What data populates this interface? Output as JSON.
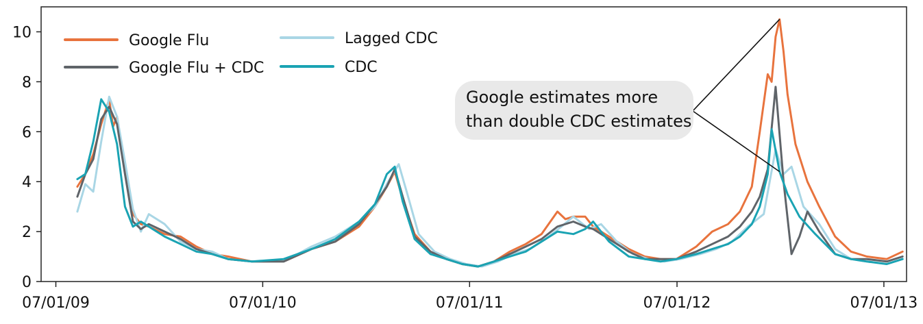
{
  "chart_data": {
    "type": "line",
    "title": "",
    "xlabel": "",
    "ylabel": "",
    "xlim": [
      "2009-06-05",
      "2013-08-10"
    ],
    "ylim": [
      0,
      11
    ],
    "yticks": [
      0,
      2,
      4,
      6,
      8,
      10
    ],
    "xticks": [
      "2009-07-01",
      "2010-07-01",
      "2011-07-01",
      "2012-07-01",
      "2013-07-01"
    ],
    "xtick_labels": [
      "07/01/09",
      "07/01/10",
      "07/01/11",
      "07/01/12",
      "07/01/13"
    ],
    "grid": false,
    "legend_position": "top-left",
    "series": [
      {
        "name": "Google Flu",
        "color": "#e8733d",
        "points": [
          [
            "2009-08-08",
            3.8
          ],
          [
            "2009-08-22",
            4.3
          ],
          [
            "2009-09-05",
            5.1
          ],
          [
            "2009-09-19",
            6.3
          ],
          [
            "2009-10-03",
            7.3
          ],
          [
            "2009-10-10",
            6.2
          ],
          [
            "2009-10-17",
            6.6
          ],
          [
            "2009-10-31",
            4.6
          ],
          [
            "2009-11-14",
            2.7
          ],
          [
            "2009-11-28",
            2.3
          ],
          [
            "2009-12-12",
            2.2
          ],
          [
            "2010-01-09",
            1.9
          ],
          [
            "2010-02-06",
            1.8
          ],
          [
            "2010-03-06",
            1.4
          ],
          [
            "2010-04-03",
            1.1
          ],
          [
            "2010-05-01",
            1.0
          ],
          [
            "2010-06-12",
            0.8
          ],
          [
            "2010-08-07",
            0.8
          ],
          [
            "2010-09-25",
            1.3
          ],
          [
            "2010-11-06",
            1.6
          ],
          [
            "2010-12-18",
            2.2
          ],
          [
            "2011-01-15",
            3.0
          ],
          [
            "2011-02-05",
            3.8
          ],
          [
            "2011-02-19",
            4.4
          ],
          [
            "2011-03-05",
            3.3
          ],
          [
            "2011-03-26",
            1.9
          ],
          [
            "2011-04-23",
            1.2
          ],
          [
            "2011-05-21",
            0.9
          ],
          [
            "2011-06-18",
            0.7
          ],
          [
            "2011-07-16",
            0.6
          ],
          [
            "2011-08-13",
            0.8
          ],
          [
            "2011-09-10",
            1.2
          ],
          [
            "2011-10-08",
            1.5
          ],
          [
            "2011-11-05",
            1.9
          ],
          [
            "2011-12-03",
            2.8
          ],
          [
            "2011-12-17",
            2.5
          ],
          [
            "2011-12-31",
            2.6
          ],
          [
            "2012-01-21",
            2.6
          ],
          [
            "2012-02-04",
            2.2
          ],
          [
            "2012-03-03",
            1.8
          ],
          [
            "2012-04-07",
            1.3
          ],
          [
            "2012-05-05",
            1.0
          ],
          [
            "2012-06-02",
            0.9
          ],
          [
            "2012-06-30",
            0.9
          ],
          [
            "2012-08-04",
            1.4
          ],
          [
            "2012-09-01",
            2.0
          ],
          [
            "2012-09-29",
            2.3
          ],
          [
            "2012-10-20",
            2.8
          ],
          [
            "2012-11-10",
            3.8
          ],
          [
            "2012-11-24",
            6.0
          ],
          [
            "2012-12-08",
            8.3
          ],
          [
            "2012-12-15",
            8.0
          ],
          [
            "2012-12-22",
            9.8
          ],
          [
            "2012-12-29",
            10.5
          ],
          [
            "2013-01-05",
            9.2
          ],
          [
            "2013-01-12",
            7.5
          ],
          [
            "2013-01-26",
            5.5
          ],
          [
            "2013-02-16",
            4.0
          ],
          [
            "2013-03-09",
            3.0
          ],
          [
            "2013-04-06",
            1.8
          ],
          [
            "2013-05-04",
            1.2
          ],
          [
            "2013-06-01",
            1.0
          ],
          [
            "2013-07-06",
            0.9
          ],
          [
            "2013-08-03",
            1.2
          ]
        ]
      },
      {
        "name": "Google Flu + CDC",
        "color": "#5f6469",
        "points": [
          [
            "2009-08-08",
            3.4
          ],
          [
            "2009-08-22",
            4.3
          ],
          [
            "2009-09-05",
            4.9
          ],
          [
            "2009-09-19",
            6.5
          ],
          [
            "2009-10-03",
            7.0
          ],
          [
            "2009-10-17",
            6.3
          ],
          [
            "2009-10-31",
            4.3
          ],
          [
            "2009-11-14",
            2.4
          ],
          [
            "2009-11-28",
            2.1
          ],
          [
            "2009-12-12",
            2.3
          ],
          [
            "2010-01-09",
            2.0
          ],
          [
            "2010-02-06",
            1.7
          ],
          [
            "2010-03-06",
            1.3
          ],
          [
            "2010-04-03",
            1.1
          ],
          [
            "2010-05-01",
            0.9
          ],
          [
            "2010-06-12",
            0.8
          ],
          [
            "2010-08-07",
            0.8
          ],
          [
            "2010-09-25",
            1.3
          ],
          [
            "2010-11-06",
            1.6
          ],
          [
            "2010-12-18",
            2.3
          ],
          [
            "2011-01-15",
            3.1
          ],
          [
            "2011-02-05",
            3.8
          ],
          [
            "2011-02-19",
            4.5
          ],
          [
            "2011-03-05",
            3.4
          ],
          [
            "2011-03-26",
            1.8
          ],
          [
            "2011-04-23",
            1.2
          ],
          [
            "2011-05-21",
            0.9
          ],
          [
            "2011-06-18",
            0.7
          ],
          [
            "2011-07-16",
            0.6
          ],
          [
            "2011-08-13",
            0.8
          ],
          [
            "2011-09-10",
            1.1
          ],
          [
            "2011-10-08",
            1.4
          ],
          [
            "2011-11-05",
            1.7
          ],
          [
            "2011-12-03",
            2.2
          ],
          [
            "2011-12-31",
            2.4
          ],
          [
            "2012-01-21",
            2.2
          ],
          [
            "2012-02-04",
            2.1
          ],
          [
            "2012-03-03",
            1.7
          ],
          [
            "2012-04-07",
            1.2
          ],
          [
            "2012-05-05",
            0.9
          ],
          [
            "2012-06-02",
            0.9
          ],
          [
            "2012-06-30",
            0.9
          ],
          [
            "2012-08-04",
            1.2
          ],
          [
            "2012-09-01",
            1.5
          ],
          [
            "2012-09-29",
            1.8
          ],
          [
            "2012-10-20",
            2.2
          ],
          [
            "2012-11-10",
            2.8
          ],
          [
            "2012-11-24",
            3.4
          ],
          [
            "2012-12-08",
            4.5
          ],
          [
            "2012-12-22",
            7.8
          ],
          [
            "2013-01-05",
            4.0
          ],
          [
            "2013-01-19",
            1.1
          ],
          [
            "2013-02-02",
            1.8
          ],
          [
            "2013-02-16",
            2.8
          ],
          [
            "2013-03-09",
            2.0
          ],
          [
            "2013-04-06",
            1.1
          ],
          [
            "2013-05-04",
            0.9
          ],
          [
            "2013-06-01",
            0.9
          ],
          [
            "2013-07-06",
            0.8
          ],
          [
            "2013-08-03",
            1.0
          ]
        ]
      },
      {
        "name": "Lagged CDC",
        "color": "#a9d6e5",
        "points": [
          [
            "2009-08-08",
            2.8
          ],
          [
            "2009-08-22",
            3.9
          ],
          [
            "2009-09-05",
            3.6
          ],
          [
            "2009-09-19",
            5.6
          ],
          [
            "2009-10-03",
            7.4
          ],
          [
            "2009-10-17",
            6.6
          ],
          [
            "2009-10-31",
            4.8
          ],
          [
            "2009-11-14",
            2.9
          ],
          [
            "2009-11-28",
            2.0
          ],
          [
            "2009-12-12",
            2.7
          ],
          [
            "2010-01-09",
            2.3
          ],
          [
            "2010-02-06",
            1.6
          ],
          [
            "2010-03-06",
            1.3
          ],
          [
            "2010-04-03",
            1.2
          ],
          [
            "2010-05-01",
            0.9
          ],
          [
            "2010-06-12",
            0.8
          ],
          [
            "2010-08-07",
            0.8
          ],
          [
            "2010-09-25",
            1.4
          ],
          [
            "2010-11-06",
            1.8
          ],
          [
            "2010-12-18",
            2.4
          ],
          [
            "2011-01-15",
            3.0
          ],
          [
            "2011-02-05",
            3.9
          ],
          [
            "2011-02-26",
            4.7
          ],
          [
            "2011-03-12",
            3.6
          ],
          [
            "2011-04-02",
            1.9
          ],
          [
            "2011-04-30",
            1.2
          ],
          [
            "2011-05-28",
            0.9
          ],
          [
            "2011-06-25",
            0.7
          ],
          [
            "2011-07-23",
            0.6
          ],
          [
            "2011-08-20",
            0.8
          ],
          [
            "2011-09-17",
            1.1
          ],
          [
            "2011-10-15",
            1.3
          ],
          [
            "2011-11-12",
            1.7
          ],
          [
            "2011-12-10",
            2.2
          ],
          [
            "2011-12-31",
            2.6
          ],
          [
            "2012-01-28",
            2.1
          ],
          [
            "2012-02-18",
            2.3
          ],
          [
            "2012-03-17",
            1.6
          ],
          [
            "2012-04-14",
            1.1
          ],
          [
            "2012-05-12",
            0.9
          ],
          [
            "2012-06-09",
            0.8
          ],
          [
            "2012-07-07",
            0.9
          ],
          [
            "2012-08-11",
            1.1
          ],
          [
            "2012-09-08",
            1.3
          ],
          [
            "2012-10-06",
            1.6
          ],
          [
            "2012-11-03",
            2.2
          ],
          [
            "2012-12-01",
            2.7
          ],
          [
            "2012-12-22",
            5.3
          ],
          [
            "2013-01-05",
            4.3
          ],
          [
            "2013-01-19",
            4.6
          ],
          [
            "2013-02-09",
            3.0
          ],
          [
            "2013-03-09",
            2.3
          ],
          [
            "2013-04-06",
            1.3
          ],
          [
            "2013-05-04",
            0.9
          ],
          [
            "2013-06-01",
            0.8
          ],
          [
            "2013-07-06",
            0.7
          ],
          [
            "2013-08-03",
            0.9
          ]
        ]
      },
      {
        "name": "CDC",
        "color": "#1aa3b3",
        "points": [
          [
            "2009-08-08",
            4.1
          ],
          [
            "2009-08-22",
            4.3
          ],
          [
            "2009-09-05",
            5.6
          ],
          [
            "2009-09-19",
            7.3
          ],
          [
            "2009-10-03",
            6.8
          ],
          [
            "2009-10-17",
            5.5
          ],
          [
            "2009-10-31",
            3.0
          ],
          [
            "2009-11-14",
            2.2
          ],
          [
            "2009-11-28",
            2.4
          ],
          [
            "2009-12-12",
            2.2
          ],
          [
            "2010-01-09",
            1.8
          ],
          [
            "2010-02-06",
            1.5
          ],
          [
            "2010-03-06",
            1.2
          ],
          [
            "2010-04-03",
            1.1
          ],
          [
            "2010-05-01",
            0.9
          ],
          [
            "2010-06-12",
            0.8
          ],
          [
            "2010-08-07",
            0.9
          ],
          [
            "2010-09-25",
            1.3
          ],
          [
            "2010-11-06",
            1.7
          ],
          [
            "2010-12-18",
            2.4
          ],
          [
            "2011-01-15",
            3.1
          ],
          [
            "2011-02-05",
            4.3
          ],
          [
            "2011-02-19",
            4.6
          ],
          [
            "2011-03-05",
            3.2
          ],
          [
            "2011-03-26",
            1.7
          ],
          [
            "2011-04-23",
            1.1
          ],
          [
            "2011-05-21",
            0.9
          ],
          [
            "2011-06-18",
            0.7
          ],
          [
            "2011-07-16",
            0.6
          ],
          [
            "2011-08-13",
            0.8
          ],
          [
            "2011-09-10",
            1.0
          ],
          [
            "2011-10-08",
            1.2
          ],
          [
            "2011-11-05",
            1.6
          ],
          [
            "2011-12-03",
            2.0
          ],
          [
            "2011-12-31",
            1.9
          ],
          [
            "2012-01-21",
            2.1
          ],
          [
            "2012-02-04",
            2.4
          ],
          [
            "2012-03-03",
            1.6
          ],
          [
            "2012-04-07",
            1.0
          ],
          [
            "2012-05-05",
            0.9
          ],
          [
            "2012-06-02",
            0.8
          ],
          [
            "2012-06-30",
            0.9
          ],
          [
            "2012-08-04",
            1.1
          ],
          [
            "2012-09-01",
            1.3
          ],
          [
            "2012-09-29",
            1.5
          ],
          [
            "2012-10-20",
            1.8
          ],
          [
            "2012-11-10",
            2.3
          ],
          [
            "2012-11-24",
            3.0
          ],
          [
            "2012-12-08",
            4.3
          ],
          [
            "2012-12-15",
            6.1
          ],
          [
            "2012-12-29",
            4.4
          ],
          [
            "2013-01-12",
            3.5
          ],
          [
            "2013-02-02",
            2.6
          ],
          [
            "2013-03-02",
            1.9
          ],
          [
            "2013-04-06",
            1.1
          ],
          [
            "2013-05-04",
            0.9
          ],
          [
            "2013-06-01",
            0.8
          ],
          [
            "2013-07-06",
            0.7
          ],
          [
            "2013-08-03",
            0.9
          ]
        ]
      }
    ],
    "annotations": [
      {
        "text_lines": [
          "Google estimates more",
          "than double CDC estimates"
        ],
        "targets": [
          [
            "2012-12-29",
            10.5
          ],
          [
            "2012-12-29",
            4.4
          ]
        ]
      }
    ]
  }
}
